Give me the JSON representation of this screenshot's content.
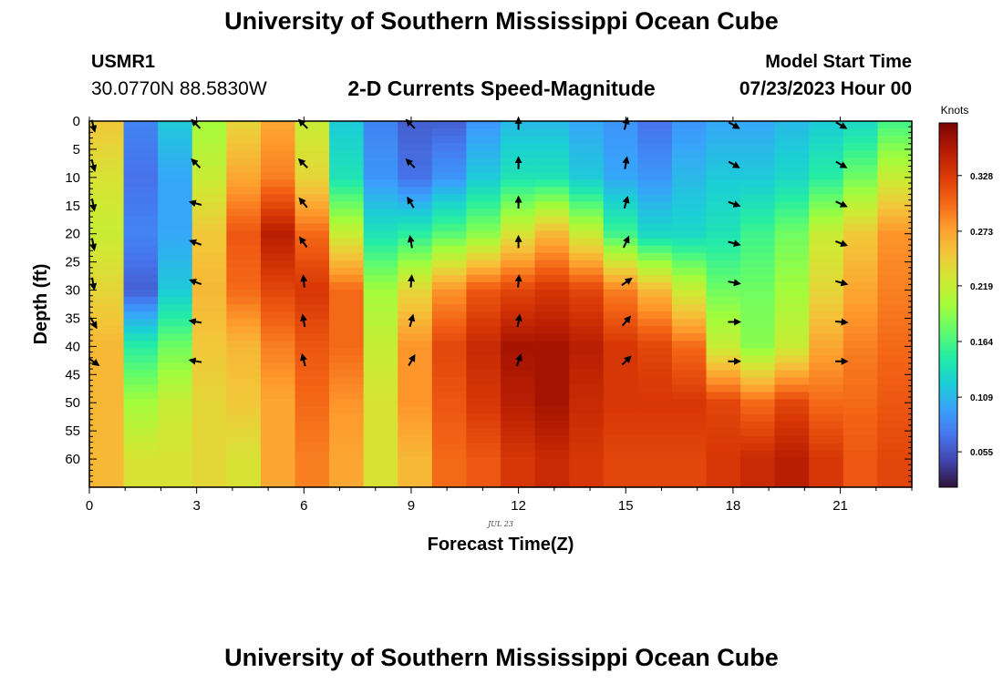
{
  "header": {
    "title": "University of Southern Mississippi Ocean Cube",
    "station_id": "USMR1",
    "station_coords": "30.0770N  88.5830W",
    "subtitle": "2-D Currents Speed-Magnitude",
    "model_start_label": "Model Start Time",
    "model_start_value": "07/23/2023 Hour 00"
  },
  "footer": {
    "title": "University of Southern Mississippi Ocean Cube"
  },
  "chart_data": {
    "type": "heatmap",
    "title": "2-D Currents Speed-Magnitude",
    "xlabel": "Forecast Time(Z)",
    "ylabel": "Depth (ft)",
    "x_date_label": "JUL 23",
    "xlim": [
      0,
      23
    ],
    "ylim": [
      65,
      0
    ],
    "x_ticks": [
      0,
      3,
      6,
      9,
      12,
      15,
      18,
      21
    ],
    "y_ticks": [
      0,
      5,
      10,
      15,
      20,
      25,
      30,
      35,
      40,
      45,
      50,
      55,
      60
    ],
    "colorbar": {
      "label": "Knots",
      "min": 0.02,
      "max": 0.38,
      "ticks": [
        "0.055",
        "0.109",
        "0.164",
        "0.219",
        "0.273",
        "0.328"
      ],
      "colors": [
        "#30123b",
        "#4145ab",
        "#4675ed",
        "#39a2fc",
        "#1bcfd4",
        "#24eca6",
        "#61fc6c",
        "#a4fc3b",
        "#d1e834",
        "#f3c63a",
        "#fe9b2d",
        "#f36315",
        "#d93806",
        "#b11901",
        "#7a0402"
      ]
    },
    "hours": [
      0,
      1,
      2,
      3,
      4,
      5,
      6,
      7,
      8,
      9,
      10,
      11,
      12,
      13,
      14,
      15,
      16,
      17,
      18,
      19,
      20,
      21,
      22,
      23
    ],
    "depths": [
      0,
      10,
      20,
      30,
      40,
      50,
      60
    ],
    "speed_knots": [
      [
        0.25,
        0.08,
        0.12,
        0.2,
        0.24,
        0.27,
        0.22,
        0.12,
        0.08,
        0.06,
        0.06,
        0.09,
        0.11,
        0.11,
        0.1,
        0.09,
        0.07,
        0.09,
        0.1,
        0.1,
        0.11,
        0.12,
        0.13,
        0.16
      ],
      [
        0.23,
        0.07,
        0.1,
        0.22,
        0.27,
        0.29,
        0.24,
        0.14,
        0.09,
        0.07,
        0.09,
        0.12,
        0.14,
        0.14,
        0.12,
        0.1,
        0.09,
        0.11,
        0.12,
        0.12,
        0.13,
        0.15,
        0.18,
        0.22
      ],
      [
        0.22,
        0.08,
        0.1,
        0.25,
        0.31,
        0.35,
        0.3,
        0.22,
        0.14,
        0.15,
        0.17,
        0.19,
        0.23,
        0.26,
        0.22,
        0.16,
        0.13,
        0.13,
        0.14,
        0.16,
        0.18,
        0.22,
        0.25,
        0.28
      ],
      [
        0.24,
        0.06,
        0.12,
        0.26,
        0.3,
        0.32,
        0.33,
        0.3,
        0.2,
        0.24,
        0.28,
        0.31,
        0.32,
        0.33,
        0.32,
        0.29,
        0.26,
        0.22,
        0.18,
        0.18,
        0.2,
        0.24,
        0.27,
        0.29
      ],
      [
        0.26,
        0.15,
        0.18,
        0.25,
        0.26,
        0.29,
        0.31,
        0.3,
        0.22,
        0.28,
        0.32,
        0.34,
        0.36,
        0.36,
        0.35,
        0.33,
        0.32,
        0.3,
        0.22,
        0.19,
        0.22,
        0.27,
        0.29,
        0.3
      ],
      [
        0.26,
        0.2,
        0.22,
        0.24,
        0.25,
        0.27,
        0.3,
        0.28,
        0.23,
        0.28,
        0.31,
        0.33,
        0.35,
        0.36,
        0.34,
        0.33,
        0.33,
        0.33,
        0.32,
        0.3,
        0.32,
        0.3,
        0.3,
        0.31
      ],
      [
        0.26,
        0.23,
        0.23,
        0.24,
        0.23,
        0.27,
        0.29,
        0.27,
        0.23,
        0.26,
        0.3,
        0.31,
        0.33,
        0.34,
        0.33,
        0.32,
        0.32,
        0.32,
        0.33,
        0.34,
        0.35,
        0.33,
        0.31,
        0.32
      ]
    ],
    "vectors": {
      "hours": [
        0,
        3,
        6,
        9,
        12,
        15,
        18,
        21
      ],
      "depths": [
        0,
        7,
        14,
        21,
        28,
        35,
        42
      ],
      "angles_deg": [
        [
          165,
          165,
          170,
          170,
          170,
          150,
          125
        ],
        [
          -45,
          -45,
          -75,
          -70,
          -70,
          -80,
          -80
        ],
        [
          -45,
          -45,
          -40,
          -35,
          -5,
          -10,
          -15
        ],
        [
          -45,
          -45,
          -30,
          -10,
          5,
          15,
          30
        ],
        [
          0,
          0,
          0,
          0,
          5,
          10,
          20
        ],
        [
          15,
          10,
          15,
          25,
          55,
          40,
          45
        ],
        [
          120,
          120,
          110,
          105,
          100,
          90,
          90
        ],
        [
          120,
          120,
          115,
          110,
          105,
          95,
          90
        ]
      ]
    }
  }
}
